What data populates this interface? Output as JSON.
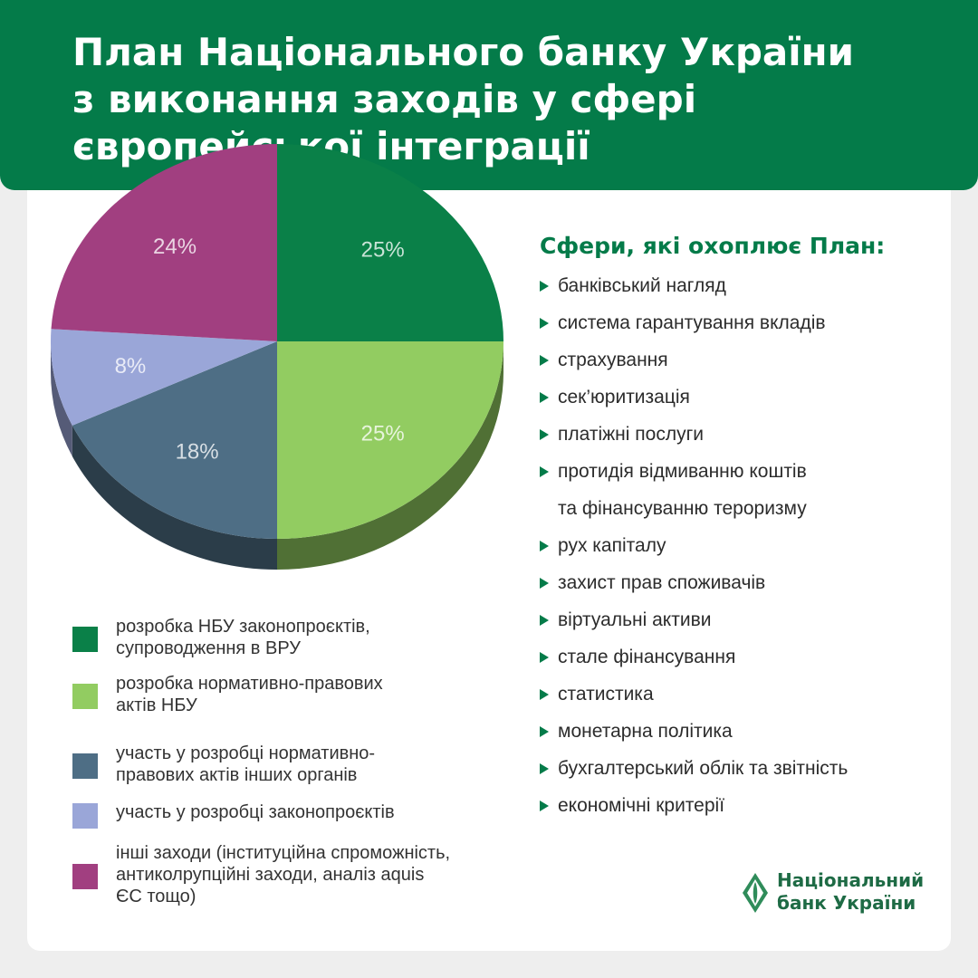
{
  "header": {
    "title": "План Національного банку України\nз виконання заходів у сфері\nєвропейської інтеграції"
  },
  "chart_data": {
    "type": "pie",
    "style": "3d",
    "slices": [
      {
        "label": "розробка НБУ законопроєктів,\nсупроводження в ВРУ",
        "value": 25,
        "value_label": "25%",
        "color": "#0a8048"
      },
      {
        "label": "розробка нормативно-правових\nактів НБУ",
        "value": 25,
        "value_label": "25%",
        "color": "#92cc61"
      },
      {
        "label": "участь у розробці нормативно-\nправових актів інших органів",
        "value": 18,
        "value_label": "18%",
        "color": "#4e6e85"
      },
      {
        "label": "участь у розробці законопроєктів",
        "value": 8,
        "value_label": "8%",
        "color": "#9aa6d8"
      },
      {
        "label": "інші заходи (інституційна спроможність,\nантиколрупційні заходи, аналіз aquis\nЄС тощо)",
        "value": 24,
        "value_label": "24%",
        "color": "#a13f80"
      }
    ],
    "legend_position": "bottom-left"
  },
  "spheres": {
    "title": "Сфери, які охоплює План:",
    "items": [
      "банківський нагляд",
      "система гарантування вкладів",
      "страхування",
      "сек’юритизація",
      "платіжні послуги",
      "протидія відмиванню коштів\nта фінансуванню тероризму",
      "рух капіталу",
      "захист прав споживачів",
      "віртуальні активи",
      "стале фінансування",
      "статистика",
      "монетарна політика",
      "бухгалтерський облік та звітність",
      "економічні критерії"
    ]
  },
  "logo": {
    "text": "Національний\nбанк України",
    "icon": "nbu-logo-icon",
    "color": "#1e6b45"
  }
}
